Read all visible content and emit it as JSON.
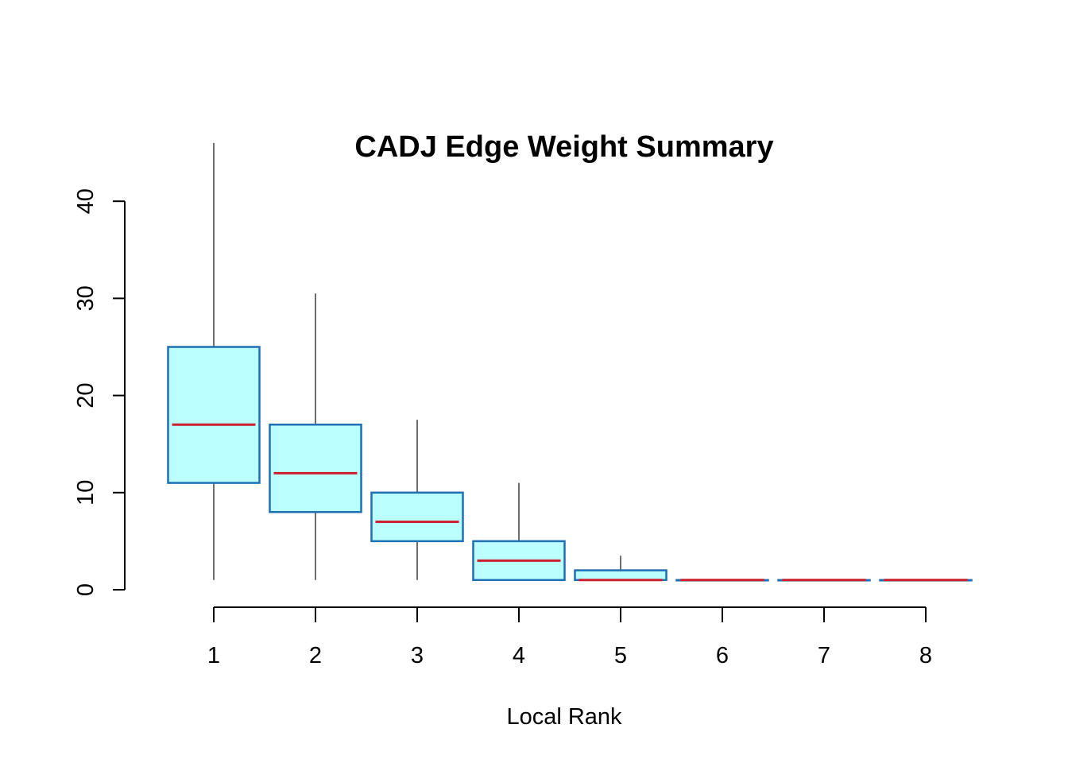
{
  "chart_data": {
    "type": "boxplot",
    "title": "CADJ Edge Weight Summary",
    "xlabel": "Local Rank",
    "ylabel": "",
    "categories": [
      "1",
      "2",
      "3",
      "4",
      "5",
      "6",
      "7",
      "8"
    ],
    "boxes": [
      {
        "min": 1,
        "q1": 11,
        "median": 17,
        "q3": 25,
        "max": 46
      },
      {
        "min": 1,
        "q1": 8,
        "median": 12,
        "q3": 17,
        "max": 30.5
      },
      {
        "min": 1,
        "q1": 5,
        "median": 7,
        "q3": 10,
        "max": 17.5
      },
      {
        "min": 1,
        "q1": 1,
        "median": 3,
        "q3": 5,
        "max": 11
      },
      {
        "min": 1,
        "q1": 1,
        "median": 1,
        "q3": 2,
        "max": 3.5
      },
      {
        "min": 1,
        "q1": 1,
        "median": 1,
        "q3": 1,
        "max": 1
      },
      {
        "min": 1,
        "q1": 1,
        "median": 1,
        "q3": 1,
        "max": 1
      },
      {
        "min": 1,
        "q1": 1,
        "median": 1,
        "q3": 1,
        "max": 1
      }
    ],
    "yticks": [
      0,
      10,
      20,
      30,
      40
    ],
    "ylim": [
      0,
      46
    ],
    "grid": false,
    "colors": {
      "box_fill": "#bbffff",
      "box_border": "#1f6fb4",
      "median": "#cc1f2f",
      "whisker": "#6e6e6e",
      "axis": "#000000"
    }
  }
}
